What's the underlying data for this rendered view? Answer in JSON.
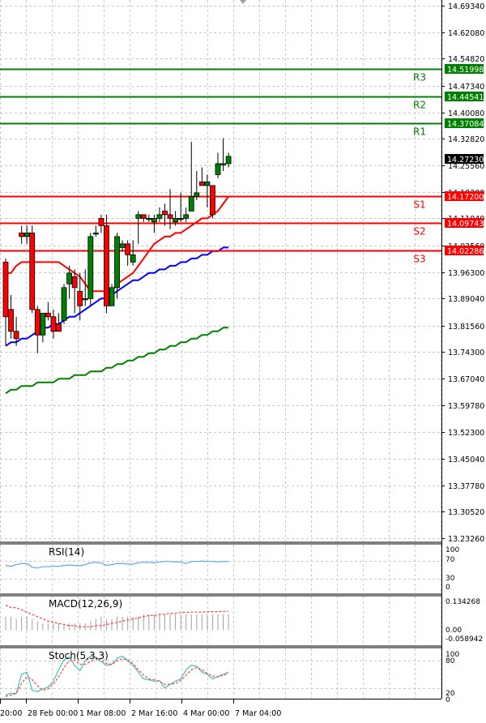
{
  "chart_data": [
    {
      "type": "candlestick",
      "title": "",
      "pane": "main",
      "ylim": [
        13.2326,
        14.6934
      ],
      "y_ticks": [
        "14.69340",
        "14.62080",
        "14.54820",
        "14.47340",
        "14.40080",
        "14.32820",
        "14.25560",
        "14.18300",
        "14.11040",
        "14.03560",
        "13.96300",
        "13.89040",
        "13.81560",
        "13.74300",
        "13.67040",
        "13.59780",
        "13.52300",
        "13.45040",
        "13.37780",
        "13.30520",
        "13.23260"
      ],
      "x_ticks": [
        "20:00",
        "28 Feb 00:00",
        "1 Mar 08:00",
        "2 Mar 16:00",
        "4 Mar 00:00",
        "7 Mar 04:00"
      ],
      "current_price": "14.27230",
      "grid": true,
      "levels": [
        {
          "name": "R3",
          "value": 14.51998,
          "label": "14.51998",
          "color": "#008000"
        },
        {
          "name": "R2",
          "value": 14.44541,
          "label": "14.44541",
          "color": "#008000"
        },
        {
          "name": "R1",
          "value": 14.37084,
          "label": "14.37084",
          "color": "#008000"
        },
        {
          "name": "S1",
          "value": 14.172,
          "label": "14.17200",
          "color": "#ff0000"
        },
        {
          "name": "S2",
          "value": 14.09743,
          "label": "14.09743",
          "color": "#ff0000"
        },
        {
          "name": "S3",
          "value": 14.02286,
          "label": "14.02286",
          "color": "#ff0000"
        }
      ],
      "candles": [
        {
          "o": 13.99,
          "h": 14.0,
          "l": 13.76,
          "c": 13.84
        },
        {
          "o": 13.86,
          "h": 13.9,
          "l": 13.78,
          "c": 13.8
        },
        {
          "o": 13.8,
          "h": 13.84,
          "l": 13.76,
          "c": 13.78
        },
        {
          "o": 14.07,
          "h": 14.09,
          "l": 14.04,
          "c": 14.06
        },
        {
          "o": 14.06,
          "h": 14.09,
          "l": 14.04,
          "c": 14.07
        },
        {
          "o": 14.07,
          "h": 14.09,
          "l": 13.85,
          "c": 13.86
        },
        {
          "o": 13.86,
          "h": 13.87,
          "l": 13.74,
          "c": 13.79
        },
        {
          "o": 13.79,
          "h": 13.85,
          "l": 13.77,
          "c": 13.85
        },
        {
          "o": 13.85,
          "h": 13.88,
          "l": 13.83,
          "c": 13.84
        },
        {
          "o": 13.84,
          "h": 13.86,
          "l": 13.78,
          "c": 13.8
        },
        {
          "o": 13.82,
          "h": 13.85,
          "l": 13.8,
          "c": 13.8
        },
        {
          "o": 13.83,
          "h": 13.93,
          "l": 13.82,
          "c": 13.92
        },
        {
          "o": 13.93,
          "h": 13.98,
          "l": 13.89,
          "c": 13.96
        },
        {
          "o": 13.95,
          "h": 13.97,
          "l": 13.85,
          "c": 13.92
        },
        {
          "o": 13.91,
          "h": 13.96,
          "l": 13.83,
          "c": 13.87
        },
        {
          "o": 13.89,
          "h": 13.97,
          "l": 13.87,
          "c": 13.89
        },
        {
          "o": 13.89,
          "h": 14.07,
          "l": 13.87,
          "c": 14.06
        },
        {
          "o": 14.07,
          "h": 14.09,
          "l": 14.06,
          "c": 14.07
        },
        {
          "o": 14.11,
          "h": 14.12,
          "l": 14.07,
          "c": 14.09
        },
        {
          "o": 14.09,
          "h": 14.12,
          "l": 13.85,
          "c": 13.87
        },
        {
          "o": 13.87,
          "h": 13.93,
          "l": 13.87,
          "c": 13.92
        },
        {
          "o": 13.92,
          "h": 14.07,
          "l": 13.89,
          "c": 14.06
        },
        {
          "o": 14.03,
          "h": 14.05,
          "l": 14.02,
          "c": 14.04
        },
        {
          "o": 14.04,
          "h": 14.05,
          "l": 13.98,
          "c": 14.01
        },
        {
          "o": 13.99,
          "h": 14.05,
          "l": 13.98,
          "c": 14.01
        },
        {
          "o": 14.11,
          "h": 14.13,
          "l": 14.04,
          "c": 14.12
        },
        {
          "o": 14.12,
          "h": 14.12,
          "l": 14.1,
          "c": 14.11
        },
        {
          "o": 14.11,
          "h": 14.12,
          "l": 14.1,
          "c": 14.11
        },
        {
          "o": 14.1,
          "h": 14.12,
          "l": 14.07,
          "c": 14.11
        },
        {
          "o": 14.11,
          "h": 14.14,
          "l": 14.1,
          "c": 14.12
        },
        {
          "o": 14.13,
          "h": 14.15,
          "l": 14.09,
          "c": 14.12
        },
        {
          "o": 14.12,
          "h": 14.19,
          "l": 14.08,
          "c": 14.11
        },
        {
          "o": 14.1,
          "h": 14.13,
          "l": 14.09,
          "c": 14.11
        },
        {
          "o": 14.11,
          "h": 14.18,
          "l": 14.1,
          "c": 14.11
        },
        {
          "o": 14.11,
          "h": 14.14,
          "l": 14.1,
          "c": 14.12
        },
        {
          "o": 14.13,
          "h": 14.32,
          "l": 14.13,
          "c": 14.17
        },
        {
          "o": 14.17,
          "h": 14.24,
          "l": 14.16,
          "c": 14.18
        },
        {
          "o": 14.21,
          "h": 14.25,
          "l": 14.2,
          "c": 14.2
        },
        {
          "o": 14.2,
          "h": 14.23,
          "l": 14.14,
          "c": 14.21
        },
        {
          "o": 14.2,
          "h": 14.2,
          "l": 14.11,
          "c": 14.12
        },
        {
          "o": 14.23,
          "h": 14.29,
          "l": 14.22,
          "c": 14.26
        },
        {
          "o": 14.26,
          "h": 14.33,
          "l": 14.24,
          "c": 14.26
        },
        {
          "o": 14.26,
          "h": 14.29,
          "l": 14.25,
          "c": 14.28
        }
      ],
      "moving_averages": [
        {
          "name": "MA fast",
          "color": "#ff0000",
          "values": [
            13.96,
            13.96,
            13.98,
            13.99,
            13.99,
            13.99,
            13.99,
            13.99,
            13.99,
            13.99,
            13.99,
            13.98,
            13.97,
            13.96,
            13.95,
            13.93,
            13.91,
            13.91,
            13.91,
            13.91,
            13.91,
            13.93,
            13.94,
            13.95,
            13.96,
            13.98,
            14.0,
            14.02,
            14.04,
            14.05,
            14.06,
            14.06,
            14.07,
            14.07,
            14.08,
            14.09,
            14.1,
            14.11,
            14.11,
            14.12,
            14.13,
            14.15,
            14.17
          ]
        },
        {
          "name": "MA mid",
          "color": "#0000ff",
          "values": [
            13.76,
            13.77,
            13.77,
            13.78,
            13.78,
            13.79,
            13.8,
            13.81,
            13.81,
            13.82,
            13.82,
            13.83,
            13.84,
            13.84,
            13.85,
            13.86,
            13.87,
            13.88,
            13.89,
            13.89,
            13.9,
            13.91,
            13.92,
            13.93,
            13.94,
            13.94,
            13.95,
            13.96,
            13.96,
            13.97,
            13.97,
            13.98,
            13.98,
            13.99,
            13.99,
            14.0,
            14.0,
            14.01,
            14.01,
            14.02,
            14.02,
            14.03,
            14.03
          ]
        },
        {
          "name": "MA slow",
          "color": "#008000",
          "values": [
            13.63,
            13.64,
            13.64,
            13.65,
            13.65,
            13.65,
            13.66,
            13.66,
            13.66,
            13.66,
            13.67,
            13.67,
            13.67,
            13.68,
            13.68,
            13.68,
            13.69,
            13.69,
            13.69,
            13.7,
            13.7,
            13.71,
            13.71,
            13.72,
            13.72,
            13.73,
            13.73,
            13.74,
            13.74,
            13.75,
            13.75,
            13.76,
            13.76,
            13.77,
            13.77,
            13.78,
            13.78,
            13.79,
            13.79,
            13.8,
            13.8,
            13.81,
            13.81
          ]
        }
      ]
    },
    {
      "type": "line",
      "pane": "rsi",
      "title": "RSI(14)",
      "ylim": [
        0,
        100
      ],
      "y_ticks": [
        "100",
        "70",
        "30",
        "0"
      ],
      "levels": [
        70,
        30
      ],
      "series": [
        {
          "name": "RSI",
          "color": "#5aaaf0",
          "values": [
            60,
            58,
            62,
            64,
            64,
            56,
            54,
            57,
            57,
            58,
            58,
            60,
            61,
            60,
            59,
            62,
            66,
            67,
            66,
            60,
            62,
            64,
            64,
            63,
            63,
            66,
            67,
            67,
            66,
            68,
            69,
            69,
            68,
            68,
            64,
            69,
            69,
            70,
            69,
            69,
            68,
            69,
            69
          ]
        }
      ]
    },
    {
      "type": "bar+line",
      "pane": "macd",
      "title": "MACD(12,26,9)",
      "ylim": [
        -0.058942,
        0.134268
      ],
      "y_ticks": [
        "0.134268",
        "0.00",
        "-0.058942"
      ],
      "series": [
        {
          "name": "MACD",
          "type": "bar",
          "color": "#a0a0a0",
          "values": [
            0.06,
            0.06,
            0.05,
            0.06,
            0.06,
            0.05,
            0.04,
            0.03,
            0.03,
            0.03,
            0.03,
            0.02,
            0.03,
            0.03,
            0.03,
            0.03,
            0.04,
            0.05,
            0.06,
            0.05,
            0.05,
            0.06,
            0.06,
            0.06,
            0.06,
            0.06,
            0.07,
            0.07,
            0.07,
            0.07,
            0.07,
            0.07,
            0.07,
            0.07,
            0.07,
            0.07,
            0.07,
            0.07,
            0.07,
            0.07,
            0.07,
            0.07,
            0.07
          ]
        },
        {
          "name": "Signal",
          "type": "line",
          "color": "#ff4040",
          "dashed": true,
          "values": [
            0.11,
            0.1,
            0.1,
            0.09,
            0.08,
            0.07,
            0.06,
            0.05,
            0.04,
            0.035,
            0.03,
            0.025,
            0.02,
            0.02,
            0.015,
            0.015,
            0.015,
            0.02,
            0.02,
            0.025,
            0.03,
            0.035,
            0.04,
            0.045,
            0.05,
            0.055,
            0.06,
            0.065,
            0.065,
            0.07,
            0.07,
            0.075,
            0.075,
            0.078,
            0.078,
            0.08,
            0.08,
            0.08,
            0.082,
            0.082,
            0.082,
            0.083,
            0.083
          ]
        }
      ]
    },
    {
      "type": "line",
      "pane": "stoch",
      "title": "Stoch(5,3,3)",
      "ylim": [
        0,
        100
      ],
      "y_ticks": [
        "100",
        "80",
        "20",
        "0"
      ],
      "levels": [
        80,
        20
      ],
      "series": [
        {
          "name": "%K",
          "color": "#40c0c0",
          "values": [
            5,
            8,
            8,
            50,
            55,
            15,
            12,
            18,
            22,
            35,
            60,
            82,
            88,
            70,
            58,
            80,
            90,
            88,
            78,
            70,
            72,
            85,
            90,
            80,
            70,
            55,
            40,
            38,
            35,
            36,
            20,
            28,
            35,
            40,
            60,
            70,
            68,
            55,
            50,
            40,
            45,
            50,
            55
          ]
        },
        {
          "name": "%D",
          "color": "#ff4040",
          "dashed": true,
          "values": [
            2,
            4,
            8,
            30,
            45,
            38,
            25,
            15,
            18,
            28,
            45,
            65,
            80,
            82,
            72,
            72,
            78,
            86,
            82,
            74,
            72,
            80,
            84,
            82,
            74,
            60,
            48,
            40,
            38,
            34,
            28,
            28,
            30,
            36,
            48,
            60,
            65,
            60,
            52,
            46,
            45,
            48,
            52
          ]
        }
      ]
    }
  ]
}
